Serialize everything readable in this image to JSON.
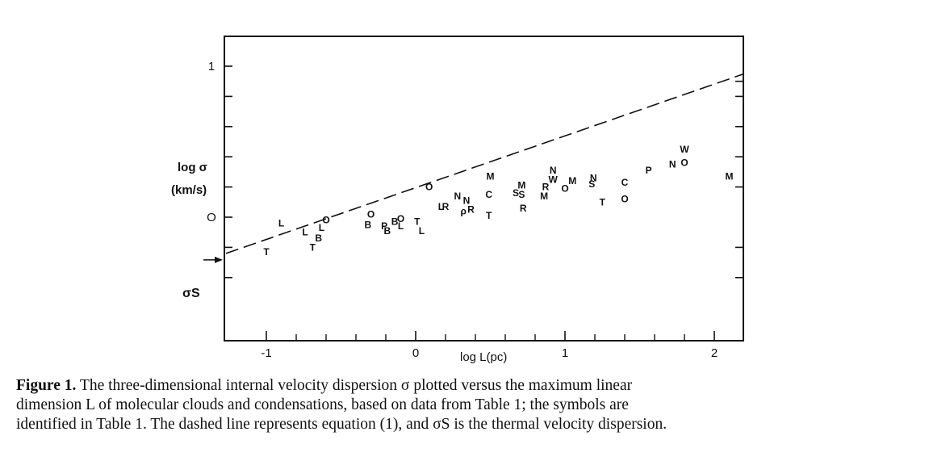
{
  "chart_data": {
    "type": "scatter",
    "ylabel_line1": "log σ",
    "ylabel_line2": "(km/s)",
    "xlabel": "log L(pc)",
    "sigma_s_label": "σS",
    "xlim": [
      -1.27,
      2.2
    ],
    "ylim": [
      -0.4,
      1.05
    ],
    "x_ticks_labeled": [
      {
        "value": -1,
        "label": "-1"
      },
      {
        "value": 0,
        "label": "0"
      },
      {
        "value": 1,
        "label": "1"
      },
      {
        "value": 2,
        "label": "2"
      }
    ],
    "y_ticks_labeled": [
      {
        "value": 1,
        "label": "1"
      },
      {
        "value": 0,
        "label": "O"
      }
    ],
    "x_ticks_major": [
      -1,
      0,
      1,
      2
    ],
    "x_ticks_minor": [
      -0.8,
      -0.6,
      -0.4,
      -0.2,
      0.2,
      0.4,
      0.6,
      0.8,
      1.2,
      1.4,
      1.6,
      1.8
    ],
    "y_ticks_left": [
      1,
      0.8,
      0.6,
      0.4,
      0.2,
      0,
      -0.2,
      -0.4
    ],
    "y_ticks_right": [
      0.9,
      0.8,
      0.6,
      0.4,
      0.2,
      -0.2,
      -0.4
    ],
    "sigma_s_value": -0.24,
    "fit_line": {
      "style": "dashed",
      "x": [
        -1.27,
        2.2
      ],
      "y": [
        -0.24,
        0.95
      ]
    },
    "points": [
      {
        "symbol": "T",
        "x": -1.0,
        "y": -0.23
      },
      {
        "symbol": "L",
        "x": -0.9,
        "y": -0.04
      },
      {
        "symbol": "L",
        "x": -0.74,
        "y": -0.1
      },
      {
        "symbol": "T",
        "x": -0.69,
        "y": -0.2
      },
      {
        "symbol": "B",
        "x": -0.65,
        "y": -0.14
      },
      {
        "symbol": "L",
        "x": -0.63,
        "y": -0.07
      },
      {
        "symbol": "O",
        "x": -0.6,
        "y": -0.02
      },
      {
        "symbol": "O",
        "x": -0.3,
        "y": 0.02
      },
      {
        "symbol": "B",
        "x": -0.32,
        "y": -0.05
      },
      {
        "symbol": "P",
        "x": -0.21,
        "y": -0.06
      },
      {
        "symbol": "B",
        "x": -0.19,
        "y": -0.09
      },
      {
        "symbol": "B",
        "x": -0.14,
        "y": -0.03
      },
      {
        "symbol": "O",
        "x": -0.1,
        "y": -0.01
      },
      {
        "symbol": "L",
        "x": -0.1,
        "y": -0.06
      },
      {
        "symbol": "T",
        "x": 0.01,
        "y": -0.03
      },
      {
        "symbol": "L",
        "x": 0.04,
        "y": -0.09
      },
      {
        "symbol": "O",
        "x": 0.09,
        "y": 0.2
      },
      {
        "symbol": "L",
        "x": 0.17,
        "y": 0.07
      },
      {
        "symbol": "R",
        "x": 0.2,
        "y": 0.07
      },
      {
        "symbol": "N",
        "x": 0.28,
        "y": 0.14
      },
      {
        "symbol": "N",
        "x": 0.34,
        "y": 0.11
      },
      {
        "symbol": "ρ",
        "x": 0.32,
        "y": 0.04
      },
      {
        "symbol": "R",
        "x": 0.37,
        "y": 0.05
      },
      {
        "symbol": "T",
        "x": 0.49,
        "y": 0.01
      },
      {
        "symbol": "C",
        "x": 0.49,
        "y": 0.15
      },
      {
        "symbol": "M",
        "x": 0.5,
        "y": 0.27
      },
      {
        "symbol": "S",
        "x": 0.67,
        "y": 0.16
      },
      {
        "symbol": "S",
        "x": 0.71,
        "y": 0.15
      },
      {
        "symbol": "M",
        "x": 0.71,
        "y": 0.21
      },
      {
        "symbol": "R",
        "x": 0.72,
        "y": 0.06
      },
      {
        "symbol": "M",
        "x": 0.86,
        "y": 0.14
      },
      {
        "symbol": "R",
        "x": 0.87,
        "y": 0.2
      },
      {
        "symbol": "N",
        "x": 0.92,
        "y": 0.31
      },
      {
        "symbol": "W",
        "x": 0.92,
        "y": 0.25
      },
      {
        "symbol": "O",
        "x": 1.0,
        "y": 0.19
      },
      {
        "symbol": "M",
        "x": 1.05,
        "y": 0.24
      },
      {
        "symbol": "N",
        "x": 1.19,
        "y": 0.26
      },
      {
        "symbol": "S",
        "x": 1.18,
        "y": 0.22
      },
      {
        "symbol": "T",
        "x": 1.25,
        "y": 0.1
      },
      {
        "symbol": "O",
        "x": 1.4,
        "y": 0.12
      },
      {
        "symbol": "C",
        "x": 1.4,
        "y": 0.23
      },
      {
        "symbol": "P",
        "x": 1.56,
        "y": 0.31
      },
      {
        "symbol": "N",
        "x": 1.72,
        "y": 0.35
      },
      {
        "symbol": "O",
        "x": 1.8,
        "y": 0.36
      },
      {
        "symbol": "W",
        "x": 1.8,
        "y": 0.45
      },
      {
        "symbol": "M",
        "x": 2.1,
        "y": 0.27
      }
    ]
  },
  "caption": {
    "label": "Figure 1.",
    "line1": "The three-dimensional internal velocity dispersion σ plotted versus the maximum linear",
    "line2": "dimension L of molecular clouds and condensations, based on data from Table 1; the symbols are",
    "line3": "identified in Table 1. The dashed line represents equation (1), and σS is the thermal velocity dispersion."
  }
}
